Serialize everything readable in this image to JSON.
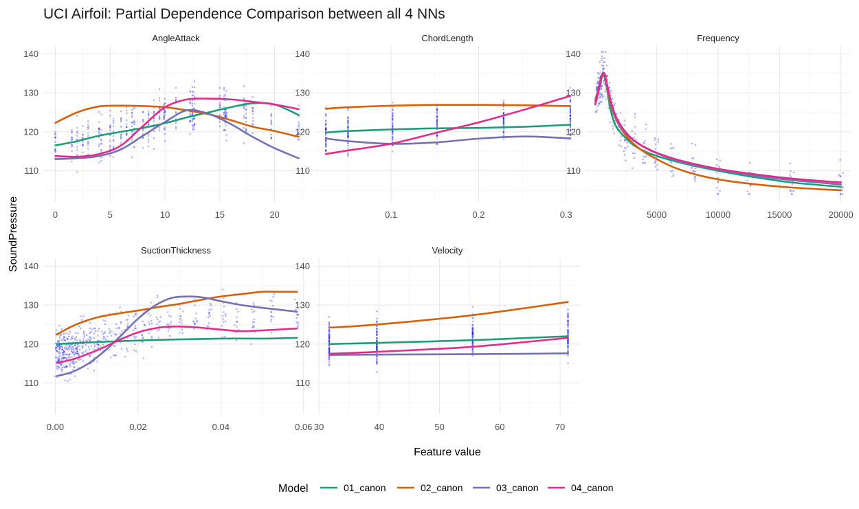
{
  "chart_data": {
    "type": "line",
    "title": "UCI Airfoil: Partial Dependence Comparison between all 4 NNs",
    "xlabel": "Feature value",
    "ylabel": "SoundPressure",
    "ylim": [
      102,
      142
    ],
    "y_ticks": [
      110,
      120,
      130,
      140
    ],
    "grid": true,
    "point_color": "#1a1aff",
    "legend": {
      "title": "Model",
      "position": "bottom",
      "entries": [
        {
          "name": "01_canon",
          "color": "#1b9e77"
        },
        {
          "name": "02_canon",
          "color": "#d95f02"
        },
        {
          "name": "03_canon",
          "color": "#7570b3"
        },
        {
          "name": "04_canon",
          "color": "#e7298a"
        }
      ]
    },
    "panels": [
      {
        "name": "AngleAttack",
        "xlim": [
          -1.1,
          23.1
        ],
        "x_ticks": [
          0,
          5,
          10,
          15,
          20
        ],
        "x_tick_labels": [
          "0",
          "5",
          "10",
          "15",
          "20"
        ],
        "x_values": [
          0,
          1.5,
          2,
          2.5,
          3,
          4,
          4.2,
          5,
          5.3,
          6,
          6.5,
          7,
          7.2,
          8,
          8.5,
          9,
          9.5,
          9.9,
          10,
          11,
          12.3,
          12.5,
          12.6,
          12.7,
          15,
          15.4,
          15.5,
          15.6,
          17.2,
          17.4,
          18,
          19.7,
          22.2
        ],
        "series": [
          {
            "name": "01_canon",
            "x": [
              0,
              2,
              4,
              6,
              8,
              10,
              12,
              14,
              16,
              18,
              20,
              22.2
            ],
            "y": [
              116.5,
              117.6,
              119.0,
              120.0,
              121.0,
              122.2,
              123.7,
              125.0,
              126.3,
              127.3,
              127.0,
              124.3
            ]
          },
          {
            "name": "02_canon",
            "x": [
              0,
              2,
              4,
              6,
              8,
              10,
              12,
              14,
              16,
              18,
              20,
              22.2
            ],
            "y": [
              122.3,
              125.0,
              126.5,
              126.7,
              126.6,
              126.3,
              125.5,
              124.5,
              123.0,
              121.3,
              120.2,
              118.7
            ]
          },
          {
            "name": "03_canon",
            "x": [
              0,
              2,
              4,
              6,
              8,
              10,
              12,
              14,
              16,
              18,
              20,
              22.2
            ],
            "y": [
              113.0,
              113.2,
              113.8,
              115.5,
              119.0,
              122.5,
              125.5,
              124.6,
              122.0,
              118.7,
              115.8,
              113.2
            ]
          },
          {
            "name": "04_canon",
            "x": [
              0,
              2,
              4,
              6,
              8,
              10,
              12,
              14,
              16,
              18,
              20,
              22.2
            ],
            "y": [
              113.8,
              113.6,
              114.3,
              116.5,
              121.5,
              126.3,
              128.3,
              128.5,
              128.3,
              127.7,
              127.0,
              125.8
            ]
          }
        ]
      },
      {
        "name": "ChordLength",
        "xlim": [
          0.0127,
          0.3159
        ],
        "x_ticks": [
          0.1,
          0.2,
          0.3
        ],
        "x_tick_labels": [
          "0.1",
          "0.2",
          "0.3"
        ],
        "x_values": [
          0.0254,
          0.0508,
          0.1016,
          0.1524,
          0.2286,
          0.3048
        ],
        "series": [
          {
            "name": "01_canon",
            "x": [
              0.0254,
              0.0508,
              0.1016,
              0.1524,
              0.2032,
              0.254,
              0.3048
            ],
            "y": [
              119.8,
              120.2,
              120.6,
              120.9,
              121.0,
              121.3,
              121.8
            ]
          },
          {
            "name": "02_canon",
            "x": [
              0.0254,
              0.0508,
              0.1016,
              0.1524,
              0.2032,
              0.254,
              0.3048
            ],
            "y": [
              125.9,
              126.3,
              126.7,
              126.9,
              126.9,
              126.8,
              126.6
            ]
          },
          {
            "name": "03_canon",
            "x": [
              0.0254,
              0.0508,
              0.1016,
              0.1524,
              0.2032,
              0.254,
              0.3048
            ],
            "y": [
              118.3,
              117.6,
              116.9,
              117.3,
              118.3,
              118.8,
              118.3
            ]
          },
          {
            "name": "04_canon",
            "x": [
              0.0254,
              0.0508,
              0.1016,
              0.1524,
              0.2032,
              0.254,
              0.3048
            ],
            "y": [
              114.3,
              115.2,
              117.0,
              119.8,
              122.6,
              125.8,
              129.2
            ]
          }
        ]
      },
      {
        "name": "Frequency",
        "xlim": [
          -800,
          20800
        ],
        "x_ticks": [
          5000,
          10000,
          15000,
          20000
        ],
        "x_tick_labels": [
          "5000",
          "10000",
          "15000",
          "20000"
        ],
        "x_values": [
          200,
          250,
          315,
          400,
          500,
          630,
          800,
          1000,
          1250,
          1600,
          2000,
          2500,
          3150,
          4000,
          5000,
          6300,
          8000,
          10000,
          12500,
          16000,
          20000
        ],
        "series": [
          {
            "name": "01_canon",
            "x": [
              0,
              200,
              400,
              600,
              800,
              1000,
              1250,
              1600,
              2000,
              2500,
              3150,
              4000,
              5000,
              6300,
              8000,
              10000,
              12500,
              16000,
              20000
            ],
            "y": [
              127.3,
              129.5,
              132.2,
              134.5,
              133.5,
              130.0,
              125.5,
              122.0,
              120.0,
              118.3,
              116.5,
              115.0,
              113.8,
              112.6,
              111.3,
              110.0,
              108.6,
              107.0,
              105.9
            ]
          },
          {
            "name": "02_canon",
            "x": [
              0,
              200,
              400,
              600,
              800,
              1000,
              1250,
              1600,
              2000,
              2500,
              3150,
              4000,
              5000,
              6300,
              8000,
              10000,
              12500,
              16000,
              20000
            ],
            "y": [
              128.3,
              130.5,
              133.0,
              135.0,
              134.0,
              130.6,
              127.0,
              123.8,
              121.3,
              119.0,
              116.8,
              114.8,
              113.0,
              111.0,
              109.2,
              107.8,
              106.7,
              105.7,
              105.0
            ]
          },
          {
            "name": "03_canon",
            "x": [
              0,
              200,
              400,
              600,
              800,
              1000,
              1250,
              1600,
              2000,
              2500,
              3150,
              4000,
              5000,
              6300,
              8000,
              10000,
              12500,
              16000,
              20000
            ],
            "y": [
              127.8,
              130.3,
              133.0,
              134.8,
              134.3,
              131.0,
              127.5,
              124.0,
              121.5,
              119.5,
              117.7,
              116.0,
              114.5,
              113.0,
              111.5,
              110.3,
              109.0,
              107.6,
              106.5
            ]
          },
          {
            "name": "04_canon",
            "x": [
              0,
              200,
              400,
              600,
              800,
              1000,
              1250,
              1600,
              2000,
              2500,
              3150,
              4000,
              5000,
              6300,
              8000,
              10000,
              12500,
              16000,
              20000
            ],
            "y": [
              127.0,
              129.8,
              132.7,
              135.0,
              134.5,
              131.5,
              128.0,
              124.5,
              122.0,
              119.8,
              117.8,
              116.1,
              114.6,
              113.2,
              111.8,
              110.5,
              109.3,
              108.0,
              107.0
            ]
          }
        ]
      },
      {
        "name": "SuctionThickness",
        "xlim": [
          -0.0029,
          0.0612
        ],
        "x_ticks": [
          0.0,
          0.02,
          0.04,
          0.06
        ],
        "x_tick_labels": [
          "0.00",
          "0.02",
          "0.04",
          "0.06"
        ],
        "x_values": [
          0.0004,
          0.0006,
          0.0008,
          0.0011,
          0.0013,
          0.0015,
          0.0019,
          0.0021,
          0.0025,
          0.0028,
          0.0031,
          0.0036,
          0.004,
          0.0043,
          0.0048,
          0.0052,
          0.0057,
          0.0063,
          0.007,
          0.008,
          0.0089,
          0.0098,
          0.0106,
          0.0117,
          0.0131,
          0.0144,
          0.0157,
          0.0172,
          0.0193,
          0.0214,
          0.0229,
          0.025,
          0.0276,
          0.0305,
          0.0338,
          0.0372,
          0.0407,
          0.0438,
          0.0478,
          0.0524,
          0.0584
        ],
        "series": [
          {
            "name": "01_canon",
            "x": [
              0.0004,
              0.01,
              0.02,
              0.03,
              0.04,
              0.05,
              0.0584
            ],
            "y": [
              120.0,
              120.5,
              120.9,
              121.2,
              121.4,
              121.4,
              121.6
            ]
          },
          {
            "name": "02_canon",
            "x": [
              0.0004,
              0.005,
              0.01,
              0.015,
              0.02,
              0.025,
              0.03,
              0.035,
              0.04,
              0.045,
              0.05,
              0.055,
              0.0584
            ],
            "y": [
              122.5,
              125.0,
              126.8,
              127.8,
              128.6,
              129.5,
              130.3,
              131.3,
              132.2,
              132.8,
              133.4,
              133.4,
              133.4
            ]
          },
          {
            "name": "03_canon",
            "x": [
              0.0004,
              0.004,
              0.008,
              0.012,
              0.016,
              0.02,
              0.024,
              0.028,
              0.032,
              0.036,
              0.04,
              0.045,
              0.05,
              0.0584
            ],
            "y": [
              111.8,
              112.8,
              115.0,
              118.3,
              122.3,
              126.5,
              129.8,
              131.8,
              132.2,
              131.9,
              131.0,
              130.0,
              129.3,
              128.3
            ]
          },
          {
            "name": "04_canon",
            "x": [
              0.0004,
              0.004,
              0.008,
              0.012,
              0.016,
              0.02,
              0.025,
              0.03,
              0.035,
              0.04,
              0.045,
              0.05,
              0.0584
            ],
            "y": [
              115.2,
              116.0,
              117.5,
              119.3,
              121.3,
              123.0,
              124.2,
              124.5,
              124.2,
              123.7,
              123.3,
              123.5,
              124.0
            ]
          }
        ]
      },
      {
        "name": "Velocity",
        "xlim": [
          29.3,
          73.3
        ],
        "x_ticks": [
          30,
          40,
          50,
          60,
          70
        ],
        "x_tick_labels": [
          "30",
          "40",
          "50",
          "60",
          "70"
        ],
        "x_values": [
          31.7,
          39.6,
          55.5,
          71.3
        ],
        "series": [
          {
            "name": "01_canon",
            "x": [
              31.7,
              39.6,
              55.5,
              71.3
            ],
            "y": [
              120.0,
              120.3,
              121.0,
              122.0
            ]
          },
          {
            "name": "02_canon",
            "x": [
              31.7,
              39.6,
              55.5,
              71.3
            ],
            "y": [
              124.2,
              125.0,
              127.4,
              130.8
            ]
          },
          {
            "name": "03_canon",
            "x": [
              31.7,
              39.6,
              55.5,
              71.3
            ],
            "y": [
              117.2,
              117.3,
              117.4,
              117.6
            ]
          },
          {
            "name": "04_canon",
            "x": [
              31.7,
              39.6,
              55.5,
              71.3
            ],
            "y": [
              117.5,
              118.0,
              119.3,
              121.6
            ]
          }
        ]
      }
    ]
  }
}
